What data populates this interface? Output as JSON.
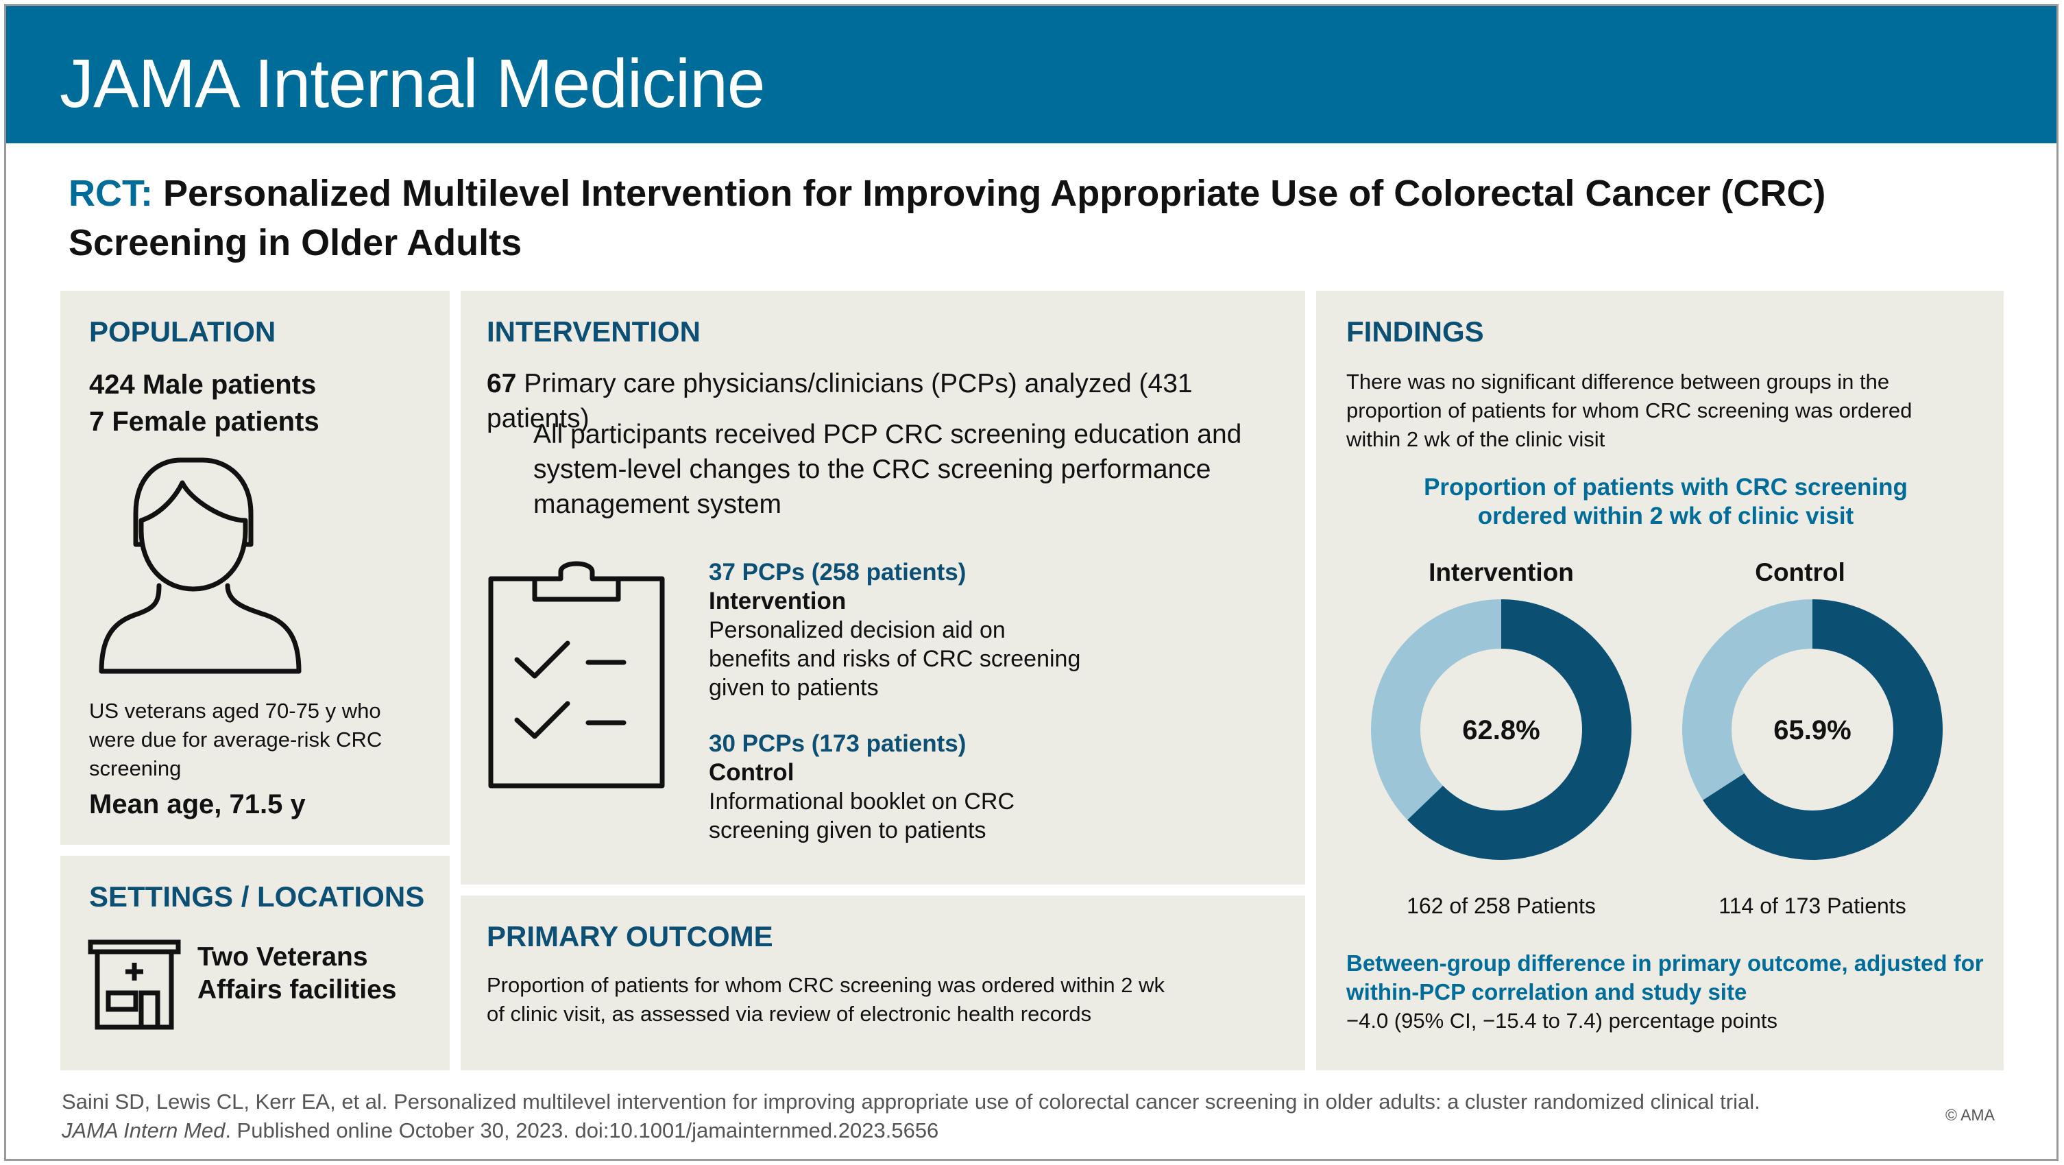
{
  "header": {
    "journal": "JAMA Internal Medicine"
  },
  "title": {
    "tag": "RCT:",
    "text": "Personalized Multilevel Intervention for Improving Appropriate Use of Colorectal Cancer (CRC) Screening in Older Adults"
  },
  "population": {
    "heading": "POPULATION",
    "male": "424 Male patients",
    "female": "7 Female patients",
    "icon": "person-icon",
    "description": "US veterans aged 70-75 y who were due for average-risk CRC screening",
    "mean_age": "Mean age, 71.5 y"
  },
  "settings": {
    "heading": "SETTINGS / LOCATIONS",
    "icon": "hospital-icon",
    "text": "Two Veterans Affairs facilities"
  },
  "intervention": {
    "heading": "INTERVENTION",
    "count": "67",
    "count_text": "Primary care physicians/clinicians (PCPs) analyzed (431 patients)",
    "all_participants": "All participants received PCP CRC screening education and system-level changes to the CRC screening performance management system",
    "icon": "clipboard-checklist-icon",
    "group1": {
      "count": "37 PCPs (258 patients)",
      "name": "Intervention",
      "description": "Personalized decision aid on benefits and risks of CRC screening given to patients"
    },
    "group2": {
      "count": "30 PCPs (173 patients)",
      "name": "Control",
      "description": "Informational booklet on CRC screening given to patients"
    }
  },
  "primary_outcome": {
    "heading": "PRIMARY OUTCOME",
    "text": "Proportion of patients for whom CRC screening was ordered within 2 wk of clinic visit, as assessed via review of electronic health records"
  },
  "findings": {
    "heading": "FINDINGS",
    "summary": "There was no significant difference between groups in the proportion of patients for whom CRC screening was ordered within 2 wk of the clinic visit",
    "difference_heading": "Between-group difference in primary outcome, adjusted for within-PCP correlation and study site",
    "difference_value": "−4.0 (95% CI, −15.4 to 7.4) percentage points"
  },
  "chart_data": {
    "type": "pie",
    "title": "Proportion of patients with CRC screening ordered within 2 wk of clinic visit",
    "colors": {
      "filled": "#0b4f72",
      "remaining": "#9cc6d8"
    },
    "charts": [
      {
        "name": "Intervention",
        "value": 62.8,
        "label": "62.8%",
        "caption": "162 of 258 Patients"
      },
      {
        "name": "Control",
        "value": 65.9,
        "label": "65.9%",
        "caption": "114 of 173 Patients"
      }
    ]
  },
  "citation": {
    "line1": "Saini SD, Lewis CL, Kerr EA, et al. Personalized multilevel intervention for improving appropriate use of colorectal cancer screening in older adults: a cluster randomized clinical trial.",
    "journal": "JAMA Intern Med",
    "line2": ". Published online October 30, 2023. doi:10.1001/jamainternmed.2023.5656",
    "copyright": "© AMA"
  }
}
